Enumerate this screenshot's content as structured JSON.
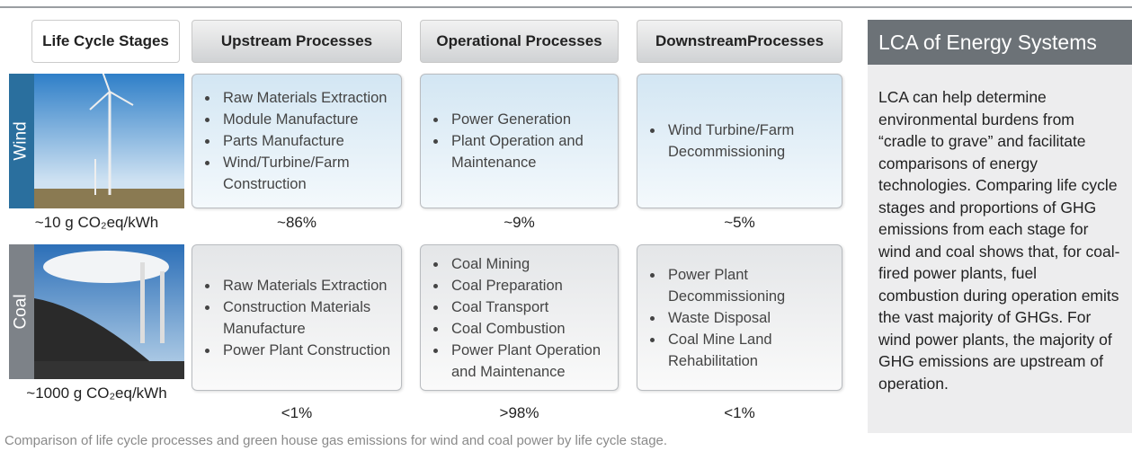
{
  "header": {
    "stages": [
      "Life Cycle Stages",
      "Upstream Processes",
      "Operational Processes",
      "DownstreamProcesses"
    ]
  },
  "rows": [
    {
      "label": "Wind",
      "emissions": "~10 g CO₂eq/kWh",
      "cells": [
        [
          "Raw Materials Extraction",
          "Module Manufacture",
          "Parts Manufacture",
          "Wind/Turbine/Farm Construction"
        ],
        [
          "Power Generation",
          "Plant Operation and Maintenance"
        ],
        [
          "Wind Turbine/Farm Decommissioning"
        ]
      ],
      "shares": [
        "~86%",
        "~9%",
        "~5%"
      ]
    },
    {
      "label": "Coal",
      "emissions": "~1000 g CO₂eq/kWh",
      "cells": [
        [
          "Raw Materials Extraction",
          "Construction Materials Manufacture",
          "Power Plant Construction"
        ],
        [
          "Coal Mining",
          "Coal Preparation",
          "Coal Transport",
          "Coal Combustion",
          "Power Plant Operation and Maintenance"
        ],
        [
          "Power Plant Decommissioning",
          "Waste Disposal",
          "Coal Mine Land Rehabilitation"
        ]
      ],
      "shares": [
        "<1%",
        ">98%",
        "<1%"
      ]
    }
  ],
  "sidebar": {
    "title": "LCA of Energy Systems",
    "text": "LCA can help determine environmental burdens from “cradle to grave” and facilitate comparisons of energy technologies. Comparing life cycle stages and proportions of GHG emissions from each stage for wind and coal shows that, for coal-fired power plants, fuel combustion during operation emits the vast majority of GHGs. For wind power plants, the majority of GHG emissions are upstream of operation."
  },
  "caption": "Comparison of life cycle processes and green house gas emissions for wind and coal power by life cycle stage."
}
